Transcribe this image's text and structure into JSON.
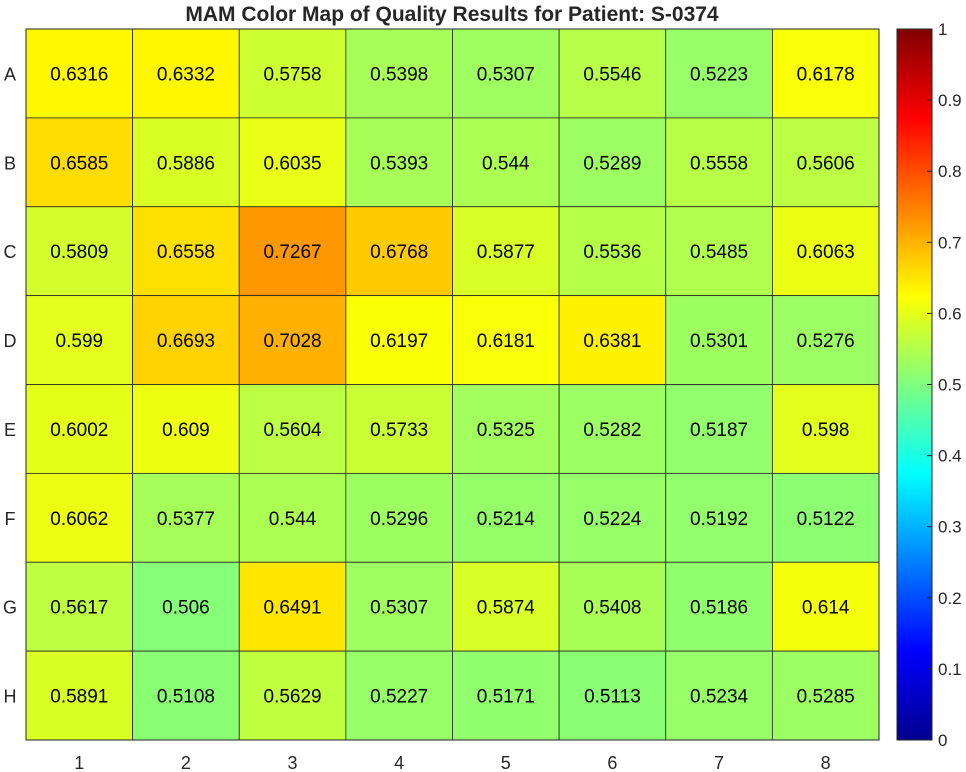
{
  "chart_data": {
    "type": "heatmap",
    "title": "MAM Color Map of Quality Results for Patient: S-0374",
    "rows": [
      "A",
      "B",
      "C",
      "D",
      "E",
      "F",
      "G",
      "H"
    ],
    "columns": [
      "1",
      "2",
      "3",
      "4",
      "5",
      "6",
      "7",
      "8"
    ],
    "values": [
      [
        "0.6316",
        "0.6332",
        "0.5758",
        "0.5398",
        "0.5307",
        "0.5546",
        "0.5223",
        "0.6178"
      ],
      [
        "0.6585",
        "0.5886",
        "0.6035",
        "0.5393",
        "0.544",
        "0.5289",
        "0.5558",
        "0.5606"
      ],
      [
        "0.5809",
        "0.6558",
        "0.7267",
        "0.6768",
        "0.5877",
        "0.5536",
        "0.5485",
        "0.6063"
      ],
      [
        "0.599",
        "0.6693",
        "0.7028",
        "0.6197",
        "0.6181",
        "0.6381",
        "0.5301",
        "0.5276"
      ],
      [
        "0.6002",
        "0.609",
        "0.5604",
        "0.5733",
        "0.5325",
        "0.5282",
        "0.5187",
        "0.598"
      ],
      [
        "0.6062",
        "0.5377",
        "0.544",
        "0.5296",
        "0.5214",
        "0.5224",
        "0.5192",
        "0.5122"
      ],
      [
        "0.5617",
        "0.506",
        "0.6491",
        "0.5307",
        "0.5874",
        "0.5408",
        "0.5186",
        "0.614"
      ],
      [
        "0.5891",
        "0.5108",
        "0.5629",
        "0.5227",
        "0.5171",
        "0.5113",
        "0.5234",
        "0.5285"
      ]
    ],
    "colormap": "jet",
    "color_range": [
      0,
      1
    ],
    "colorbar_ticks": [
      "0",
      "0.1",
      "0.2",
      "0.3",
      "0.4",
      "0.5",
      "0.6",
      "0.7",
      "0.8",
      "0.9",
      "1"
    ],
    "colorbar_placement": "right",
    "grid": true
  }
}
